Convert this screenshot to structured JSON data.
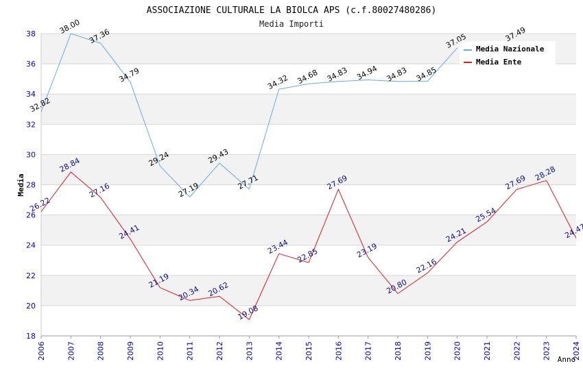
{
  "chart_data": {
    "type": "line",
    "title": "ASSOCIAZIONE CULTURALE LA BIOLCA APS (c.f.80027480286)",
    "subtitle": "Media Importi",
    "xlabel": "Anno",
    "ylabel": "Media",
    "ylim": [
      18,
      38
    ],
    "yticks": [
      "18",
      "20",
      "22",
      "24",
      "26",
      "28",
      "30",
      "32",
      "34",
      "36",
      "38"
    ],
    "x": [
      "2006",
      "2007",
      "2008",
      "2009",
      "2010",
      "2011",
      "2012",
      "2013",
      "2014",
      "2015",
      "2016",
      "2017",
      "2018",
      "2019",
      "2020",
      "2021",
      "2022",
      "2023",
      "2024"
    ],
    "grid": true,
    "legend_position": "top-right",
    "series": [
      {
        "name": "Media Nazionale",
        "color": "#6aa8e8",
        "label_color": "#000000",
        "values": [
          32.82,
          38.0,
          37.36,
          34.79,
          29.24,
          27.19,
          29.43,
          27.71,
          34.32,
          34.68,
          34.83,
          34.94,
          34.83,
          34.85,
          37.05,
          null,
          37.49,
          null,
          null
        ],
        "labels": [
          "32.82",
          "38.00",
          "37.36",
          "34.79",
          "29.24",
          "27.19",
          "29.43",
          "27.71",
          "34.32",
          "34.68",
          "34.83",
          "34.94",
          "34.83",
          "34.85",
          "37.05",
          "",
          "37.49",
          "",
          ""
        ]
      },
      {
        "name": "Media Ente",
        "color": "#e0191e",
        "label_color": "#0a0a8c",
        "values": [
          26.22,
          28.84,
          27.16,
          24.41,
          21.19,
          20.34,
          20.62,
          19.08,
          23.44,
          22.85,
          27.69,
          23.19,
          20.8,
          22.16,
          24.21,
          25.54,
          27.69,
          28.28,
          24.47
        ],
        "labels": [
          "26.22",
          "28.84",
          "27.16",
          "24.41",
          "21.19",
          "20.34",
          "20.62",
          "19.08",
          "23.44",
          "22.85",
          "27.69",
          "23.19",
          "20.80",
          "22.16",
          "24.21",
          "25.54",
          "27.69",
          "28.28",
          "24.47"
        ]
      }
    ],
    "colors": {
      "axis_tick_text": "#0000cc",
      "band_fill": "#f2f2f2",
      "grid_line": "#d8d8d8",
      "title_text": "#000000"
    }
  }
}
